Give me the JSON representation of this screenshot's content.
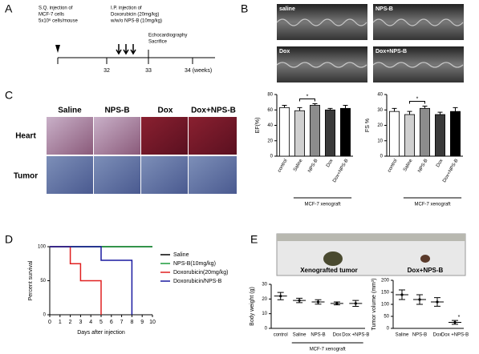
{
  "figure": {
    "panel_labels": [
      "A",
      "B",
      "C",
      "D",
      "E"
    ],
    "timeline": {
      "injection1": [
        "S.Q. injection of",
        "MCF-7 cells",
        "5x10⁶ cells/mouse"
      ],
      "injection2": [
        "I.P. injection of",
        "Doxorubicin (20mg/kg)",
        "w/w/o NPS-B (10mg/kg)"
      ],
      "echo": [
        "Echocardiography",
        "Sacrifice"
      ],
      "ticks": [
        "32",
        "33",
        "34 (weeks)"
      ]
    },
    "echo_images": [
      "saline",
      "NPS-B",
      "Dox",
      "Dox+NPS-B"
    ],
    "histology": {
      "columns": [
        "Saline",
        "NPS-B",
        "Dox",
        "Dox+NPS-B"
      ],
      "rows": [
        "Heart",
        "Tumor"
      ]
    },
    "tumor_photo": {
      "labels": [
        "Xenografted tumor",
        "Dox+NPS-B"
      ]
    }
  },
  "chart_data": [
    {
      "type": "bar",
      "ylabel": "EF(%)",
      "categories": [
        "control",
        "Saline",
        "NPS-B",
        "Dox",
        "Dox+NPS-B"
      ],
      "values": [
        63,
        59,
        66,
        60,
        62
      ],
      "errors": [
        3,
        4,
        2,
        2,
        4
      ],
      "colors": [
        "#ffffff",
        "#d0d0d0",
        "#8c8c8c",
        "#3a3a3a",
        "#000000"
      ],
      "ylim": [
        0,
        80
      ],
      "yticks": [
        0,
        20,
        40,
        60,
        80
      ],
      "group_label": "MCF-7 xenograft",
      "annotation": "*"
    },
    {
      "type": "bar",
      "ylabel": "FS %",
      "categories": [
        "control",
        "Saline",
        "NPS-B",
        "Dox",
        "Dox+NPS-B"
      ],
      "values": [
        29,
        27,
        31,
        27,
        29
      ],
      "errors": [
        2,
        2,
        1.5,
        1.5,
        2.5
      ],
      "colors": [
        "#ffffff",
        "#d0d0d0",
        "#8c8c8c",
        "#3a3a3a",
        "#000000"
      ],
      "ylim": [
        0,
        40
      ],
      "yticks": [
        0,
        10,
        20,
        30,
        40
      ],
      "group_label": "MCF-7 xenograft",
      "annotation": "*"
    },
    {
      "type": "line",
      "step": true,
      "xlabel": "Days after injection",
      "ylabel": "Percent survival",
      "xlim": [
        0,
        10
      ],
      "xticks": [
        0,
        1,
        2,
        3,
        4,
        5,
        6,
        7,
        8,
        9,
        10
      ],
      "ylim": [
        0,
        100
      ],
      "yticks": [
        0,
        50,
        100
      ],
      "series": [
        {
          "name": "Saline",
          "color": "#000000",
          "x": [
            0,
            10
          ],
          "values": [
            100,
            100
          ]
        },
        {
          "name": "NPS-B(10mg/kg)",
          "color": "#1a9a3a",
          "x": [
            0,
            10
          ],
          "values": [
            100,
            100
          ]
        },
        {
          "name": "Doxorubicin(20mg/kg)",
          "color": "#e02020",
          "x": [
            0,
            2,
            3,
            5
          ],
          "values": [
            100,
            75,
            50,
            0
          ]
        },
        {
          "name": "Doxorubicin/NPS-B",
          "color": "#1a1aa0",
          "x": [
            0,
            5,
            8
          ],
          "values": [
            100,
            80,
            0
          ]
        }
      ]
    },
    {
      "type": "dot",
      "ylabel": "Body weight (g)",
      "categories": [
        "control",
        "Saline",
        "NPS-B",
        "Dox",
        "Dox +NPS-B"
      ],
      "values": [
        22,
        19,
        18,
        17,
        17
      ],
      "errors": [
        2.5,
        1.5,
        1.5,
        1,
        2
      ],
      "ylim": [
        0,
        30
      ],
      "yticks": [
        0,
        10,
        20,
        30
      ],
      "group_label": "MCF-7 xenograft"
    },
    {
      "type": "dot",
      "ylabel": "Tumor volume (mm³)",
      "categories": [
        "Saline",
        "NPS-B",
        "Dox",
        "Dox +NPS-B"
      ],
      "values": [
        140,
        120,
        110,
        25
      ],
      "errors": [
        20,
        20,
        18,
        8
      ],
      "ylim": [
        0,
        200
      ],
      "yticks": [
        0,
        50,
        100,
        150,
        200
      ],
      "annotation": "*"
    }
  ]
}
